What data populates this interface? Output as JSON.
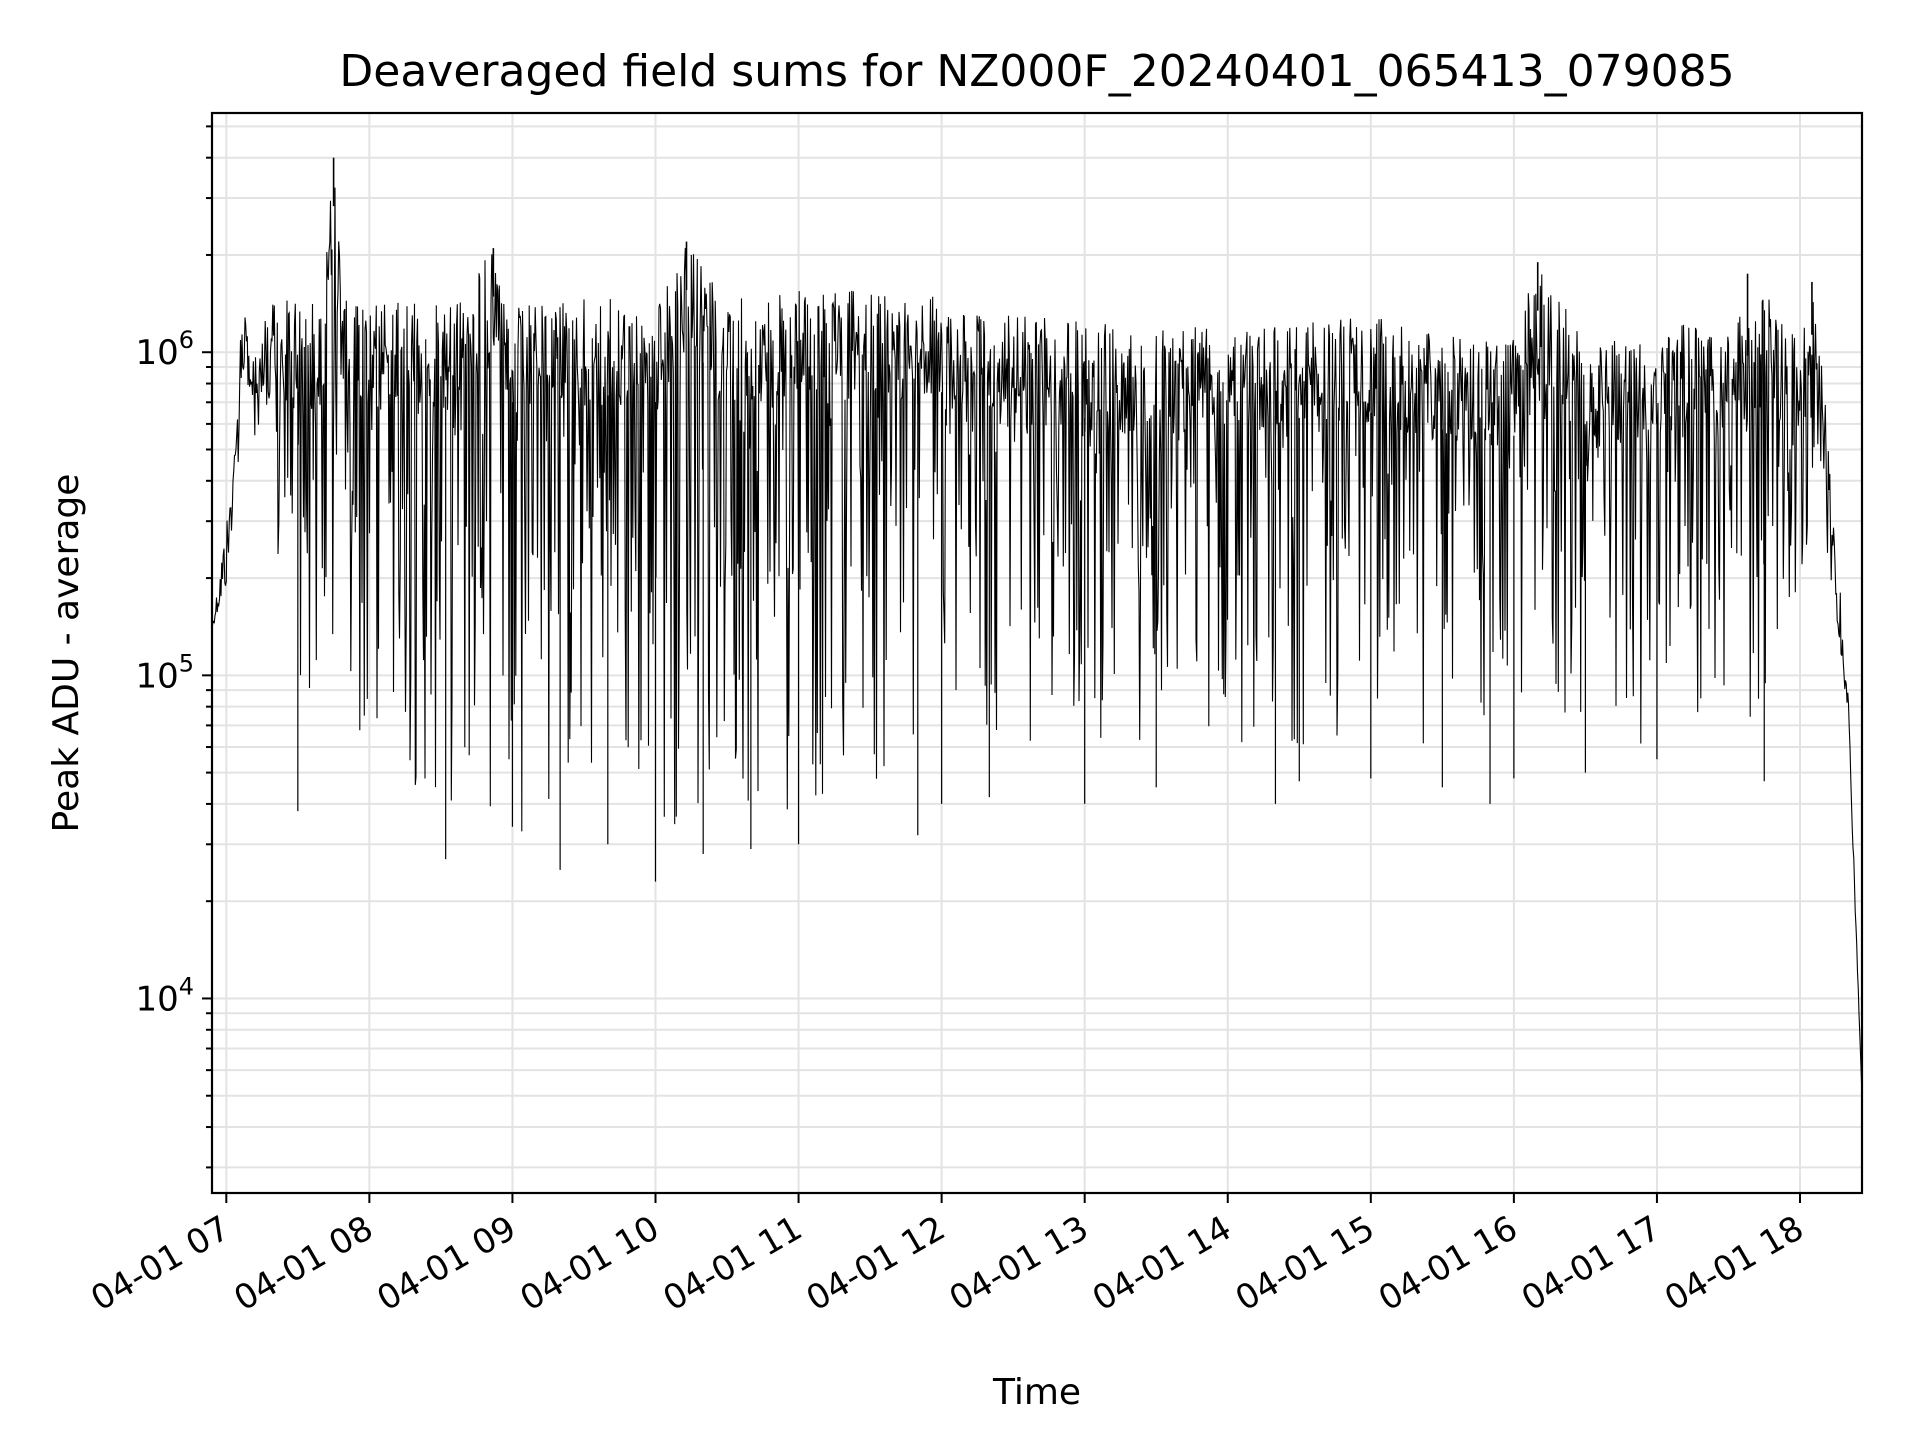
{
  "chart_data": {
    "type": "line",
    "title": "Deaveraged field sums for NZ000F_20240401_065413_079085",
    "xlabel": "Time",
    "ylabel": "Peak ADU - average",
    "yscale": "log",
    "ylim": [
      2500,
      5500000
    ],
    "xlim": [
      "04-01 06:54",
      "04-01 18:26"
    ],
    "grid": true,
    "line_color": "#000000",
    "x_ticks": [
      "04-01 07",
      "04-01 08",
      "04-01 09",
      "04-01 10",
      "04-01 11",
      "04-01 12",
      "04-01 13",
      "04-01 14",
      "04-01 15",
      "04-01 16",
      "04-01 17",
      "04-01 18"
    ],
    "y_ticks": [
      {
        "value": 10000,
        "base": "10",
        "exp": "4"
      },
      {
        "value": 100000,
        "base": "10",
        "exp": "5"
      },
      {
        "value": 1000000,
        "base": "10",
        "exp": "6"
      }
    ],
    "series": [
      {
        "upper_envelope": {
          "x": [
            "06:54",
            "07:00",
            "07:02",
            "07:05",
            "07:08",
            "07:10",
            "07:15",
            "07:20",
            "07:30",
            "07:40",
            "07:45",
            "07:50",
            "08:00",
            "08:30",
            "08:52",
            "09:00",
            "09:30",
            "10:00",
            "10:13",
            "10:30",
            "11:00",
            "11:30",
            "12:00",
            "12:30",
            "13:00",
            "13:30",
            "14:00",
            "14:30",
            "15:00",
            "15:30",
            "16:00",
            "16:10",
            "16:30",
            "17:00",
            "17:30",
            "17:45",
            "18:00",
            "18:05",
            "18:10",
            "18:15",
            "18:20",
            "18:26"
          ],
          "y": [
            140000,
            180000,
            250000,
            1000000,
            1800000,
            900000,
            1500000,
            1400000,
            1500000,
            1400000,
            4000000,
            1450000,
            1450000,
            1400000,
            2100000,
            1400000,
            1500000,
            1400000,
            2200000,
            1450000,
            1550000,
            1550000,
            1500000,
            1300000,
            1250000,
            1250000,
            1300000,
            1250000,
            1300000,
            1150000,
            1100000,
            1900000,
            1100000,
            1200000,
            1250000,
            1500000,
            1200000,
            1600000,
            800000,
            300000,
            100000,
            5000
          ]
        },
        "lower_envelope": {
          "x": [
            "06:54",
            "07:02",
            "07:10",
            "07:20",
            "07:30",
            "07:40",
            "07:50",
            "08:00",
            "08:30",
            "09:00",
            "09:30",
            "10:00",
            "10:30",
            "11:00",
            "11:30",
            "12:00",
            "12:30",
            "13:00",
            "13:30",
            "14:00",
            "14:30",
            "15:00",
            "15:30",
            "16:00",
            "16:30",
            "17:00",
            "17:30",
            "17:45",
            "18:00",
            "18:05",
            "18:10",
            "18:15",
            "18:20",
            "18:26"
          ],
          "y": [
            140000,
            400000,
            800000,
            150000,
            80000,
            60000,
            45000,
            40000,
            35000,
            32000,
            33000,
            32000,
            32000,
            35000,
            38000,
            45000,
            55000,
            60000,
            60000,
            58000,
            58000,
            55000,
            58000,
            58000,
            60000,
            60000,
            62000,
            65000,
            100000,
            350000,
            300000,
            130000,
            80000,
            5000
          ]
        },
        "minima": {
          "x": [
            "07:30",
            "08:32",
            "09:00",
            "09:20",
            "09:40",
            "10:00",
            "10:20",
            "10:40",
            "11:00",
            "11:50",
            "12:00",
            "12:20",
            "13:00",
            "13:30",
            "14:20",
            "14:30",
            "15:00",
            "15:30",
            "15:50",
            "16:00",
            "16:30",
            "17:00",
            "17:45"
          ],
          "y": [
            38000,
            27000,
            34000,
            25000,
            30000,
            23000,
            28000,
            29000,
            30000,
            32000,
            40000,
            42000,
            40000,
            45000,
            40000,
            47000,
            48000,
            45000,
            40000,
            48000,
            50000,
            55000,
            47000
          ]
        },
        "maxima": {
          "x": [
            "07:45",
            "08:52",
            "10:13",
            "16:10",
            "17:38",
            "18:05"
          ],
          "y": [
            4000000,
            2100000,
            2200000,
            1900000,
            1750000,
            1650000
          ]
        }
      }
    ]
  }
}
